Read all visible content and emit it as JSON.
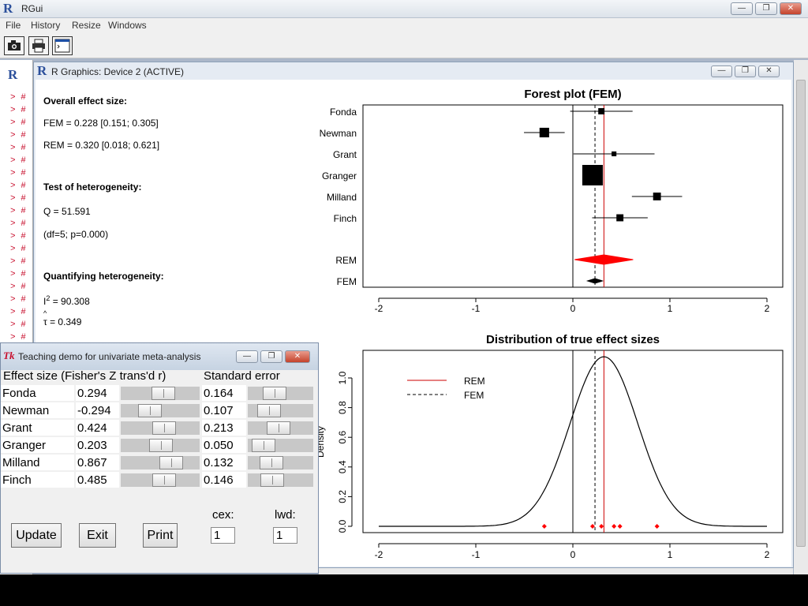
{
  "app": {
    "title": "RGui"
  },
  "menu": {
    "file": "File",
    "history": "History",
    "resize": "Resize",
    "windows": "Windows"
  },
  "toolbar": {
    "icons": [
      "camera-icon",
      "printer-icon",
      "window-icon"
    ]
  },
  "console": {
    "prompt": "> #"
  },
  "device": {
    "title": "R Graphics: Device 2 (ACTIVE)"
  },
  "summary": {
    "overall_heading": "Overall effect size:",
    "fem": "FEM = 0.228 [0.151; 0.305]",
    "rem": "REM = 0.320 [0.018; 0.621]",
    "het_heading": "Test of heterogeneity:",
    "q": "Q = 51.591",
    "df": "(df=5; p=0.000)",
    "quant_heading": "Quantifying heterogeneity:",
    "i2_label": "I",
    "i2_sup": "2",
    "i2_value": " = 90.308",
    "tau_hat": "^",
    "tau_symbol": "τ",
    "tau_value": " = 0.349"
  },
  "chart_data": [
    {
      "type": "scatter",
      "title": "Forest plot (FEM)",
      "studies": [
        {
          "name": "Fonda",
          "effect": 0.294,
          "se": 0.164
        },
        {
          "name": "Newman",
          "effect": -0.294,
          "se": 0.107
        },
        {
          "name": "Grant",
          "effect": 0.424,
          "se": 0.213
        },
        {
          "name": "Granger",
          "effect": 0.203,
          "se": 0.05
        },
        {
          "name": "Milland",
          "effect": 0.867,
          "se": 0.132
        },
        {
          "name": "Finch",
          "effect": 0.485,
          "se": 0.146
        }
      ],
      "pooled": [
        {
          "name": "REM",
          "estimate": 0.32,
          "lower": 0.018,
          "upper": 0.621,
          "color": "#ff0000"
        },
        {
          "name": "FEM",
          "estimate": 0.228,
          "lower": 0.151,
          "upper": 0.305,
          "color": "#000000"
        }
      ],
      "xlim": [
        -2,
        2
      ],
      "xticks": [
        -2,
        -1,
        0,
        1,
        2
      ],
      "reference_lines": {
        "zero": 0,
        "fem": 0.228,
        "rem": 0.32
      }
    },
    {
      "type": "line",
      "title": "Distribution of true effect sizes",
      "ylabel": "Density",
      "series": [
        {
          "name": "REM",
          "mean": 0.32,
          "sd": 0.349
        }
      ],
      "legend": [
        "REM",
        "FEM"
      ],
      "study_points": [
        0.294,
        -0.294,
        0.424,
        0.203,
        0.867,
        0.485
      ],
      "xlim": [
        -2,
        2
      ],
      "ylim": [
        0,
        1.15
      ],
      "xticks": [
        -2,
        -1,
        0,
        1,
        2
      ],
      "yticks": [
        "0.0",
        "0.2",
        "0.4",
        "0.6",
        "0.8",
        "1.0"
      ],
      "colors": {
        "rem": "#cc0000",
        "fem": "#000000",
        "points": "#ff0000"
      }
    }
  ],
  "tk": {
    "title": "Teaching demo for univariate meta-analysis",
    "header_effect": "Effect size (Fisher's Z trans'd r)",
    "header_se": "Standard error",
    "rows": [
      {
        "name": "Fonda",
        "effect": "0.294",
        "se": "0.164",
        "effect_frac": 0.55,
        "se_frac": 0.35
      },
      {
        "name": "Newman",
        "effect": "-0.294",
        "se": "0.107",
        "effect_frac": 0.31,
        "se_frac": 0.23
      },
      {
        "name": "Grant",
        "effect": "0.424",
        "se": "0.213",
        "effect_frac": 0.57,
        "se_frac": 0.45
      },
      {
        "name": "Granger",
        "effect": "0.203",
        "se": "0.050",
        "effect_frac": 0.51,
        "se_frac": 0.1
      },
      {
        "name": "Milland",
        "effect": "0.867",
        "se": "0.132",
        "effect_frac": 0.7,
        "se_frac": 0.29
      },
      {
        "name": "Finch",
        "effect": "0.485",
        "se": "0.146",
        "effect_frac": 0.57,
        "se_frac": 0.31
      }
    ],
    "update": "Update",
    "exit": "Exit",
    "print": "Print",
    "cex_label": "cex:",
    "cex_value": "1",
    "lwd_label": "lwd:",
    "lwd_value": "1"
  }
}
